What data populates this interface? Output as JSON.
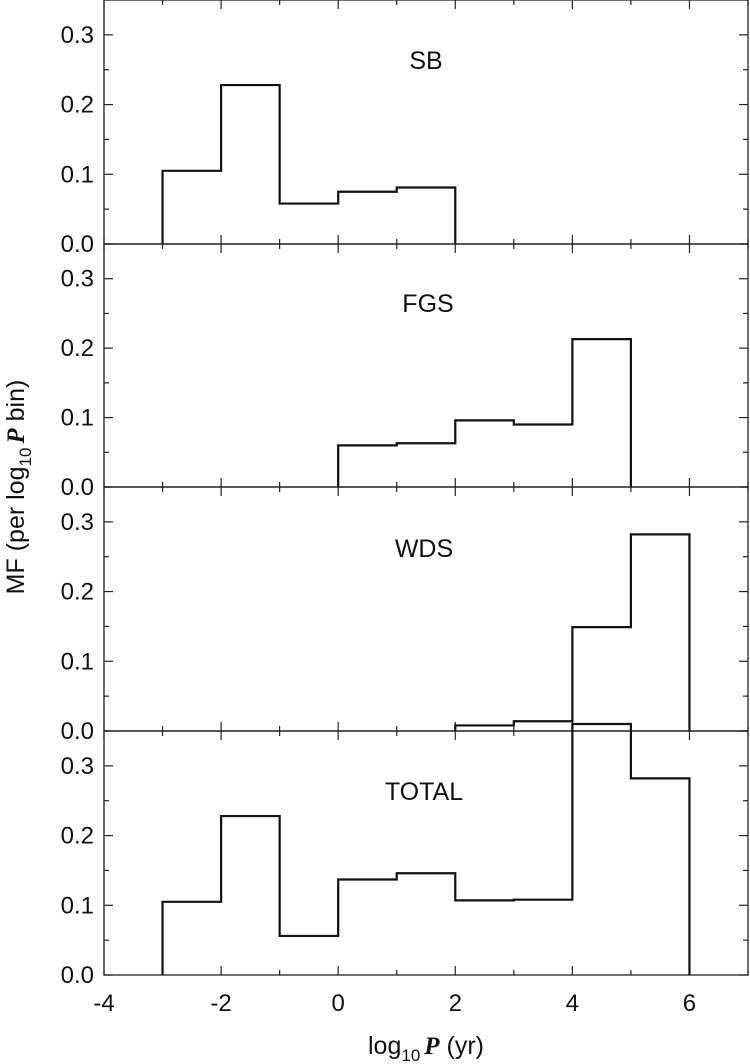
{
  "chart_data": {
    "type": "step-histogram",
    "xlabel_parts": [
      "log",
      "10",
      "P",
      "(yr)"
    ],
    "ylabel_parts": [
      "MF (per log",
      "10",
      "P",
      "bin)"
    ],
    "xlim": [
      -4,
      7
    ],
    "ylim": [
      0,
      0.35
    ],
    "x_ticks": [
      -4,
      -2,
      0,
      2,
      4,
      6
    ],
    "x_tick_labels": [
      "-4",
      "-2",
      "0",
      "2",
      "4",
      "6"
    ],
    "y_ticks": [
      0.0,
      0.1,
      0.2,
      0.3
    ],
    "y_tick_labels": [
      "0.0",
      "0.1",
      "0.2",
      "0.3"
    ],
    "panels": [
      {
        "label": "SB",
        "bin_edges": [
          -3,
          -2,
          -1,
          0,
          1,
          2
        ],
        "values": [
          0.105,
          0.228,
          0.058,
          0.075,
          0.081
        ]
      },
      {
        "label": "FGS",
        "bin_edges": [
          0,
          1,
          2,
          3,
          4,
          5
        ],
        "values": [
          0.06,
          0.063,
          0.096,
          0.09,
          0.213
        ]
      },
      {
        "label": "WDS",
        "bin_edges": [
          2,
          3,
          4,
          5,
          6
        ],
        "values": [
          0.008,
          0.014,
          0.149,
          0.282
        ]
      },
      {
        "label": "TOTAL",
        "bin_edges": [
          -3,
          -2,
          -1,
          0,
          1,
          2,
          3,
          4,
          5,
          6
        ],
        "values": [
          0.105,
          0.228,
          0.056,
          0.137,
          0.146,
          0.107,
          0.108,
          0.36,
          0.282
        ]
      }
    ]
  }
}
